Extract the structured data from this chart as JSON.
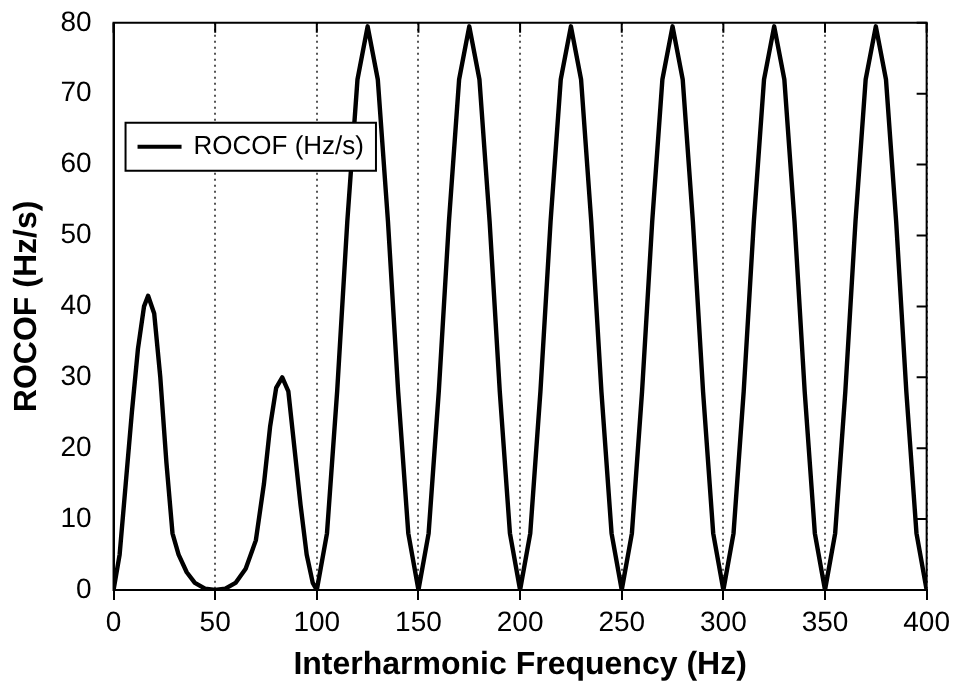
{
  "chart_data": {
    "type": "line",
    "xlabel": "Interharmonic Frequency (Hz)",
    "ylabel": "ROCOF (Hz/s)",
    "x": [
      0,
      3,
      6,
      9,
      12,
      15,
      17,
      20,
      23,
      26,
      29,
      32,
      36,
      40,
      45,
      50,
      55,
      60,
      65,
      70,
      74,
      77,
      80,
      83,
      86,
      89,
      92,
      95,
      98,
      100,
      105,
      110,
      115,
      120,
      125,
      130,
      135,
      140,
      145,
      150,
      155,
      160,
      165,
      170,
      175,
      180,
      185,
      190,
      195,
      200,
      205,
      210,
      215,
      220,
      225,
      230,
      235,
      240,
      245,
      250,
      255,
      260,
      265,
      270,
      275,
      280,
      285,
      290,
      295,
      300,
      305,
      310,
      315,
      320,
      325,
      330,
      335,
      340,
      345,
      350,
      355,
      360,
      365,
      370,
      375,
      380,
      385,
      390,
      395,
      400
    ],
    "series": [
      {
        "name": "ROCOF (Hz/s)",
        "color": "#000000",
        "values": [
          0,
          5,
          15,
          25,
          34,
          40,
          41.5,
          39,
          30,
          18,
          8,
          5,
          2.5,
          1,
          0.2,
          0,
          0.2,
          1,
          3,
          7,
          15,
          23,
          28.5,
          30,
          28,
          20,
          12,
          5,
          1,
          0,
          8,
          28,
          52,
          72,
          79.5,
          72,
          52,
          28,
          8,
          0,
          8,
          28,
          52,
          72,
          79.5,
          72,
          52,
          28,
          8,
          0,
          8,
          28,
          52,
          72,
          79.5,
          72,
          52,
          28,
          8,
          0,
          8,
          28,
          52,
          72,
          79.5,
          72,
          52,
          28,
          8,
          0,
          8,
          28,
          52,
          72,
          79.5,
          72,
          52,
          28,
          8,
          0,
          8,
          28,
          52,
          72,
          79.5,
          72,
          52,
          28,
          8,
          0
        ]
      }
    ],
    "xlim": [
      0,
      400
    ],
    "xticks": [
      0,
      50,
      100,
      150,
      200,
      250,
      300,
      350,
      400
    ],
    "ylim": [
      0,
      80
    ],
    "yticks": [
      0,
      10,
      20,
      30,
      40,
      50,
      60,
      70,
      80
    ],
    "grid": "x",
    "legend": "top left",
    "marker": "none",
    "line_style": "solid"
  }
}
